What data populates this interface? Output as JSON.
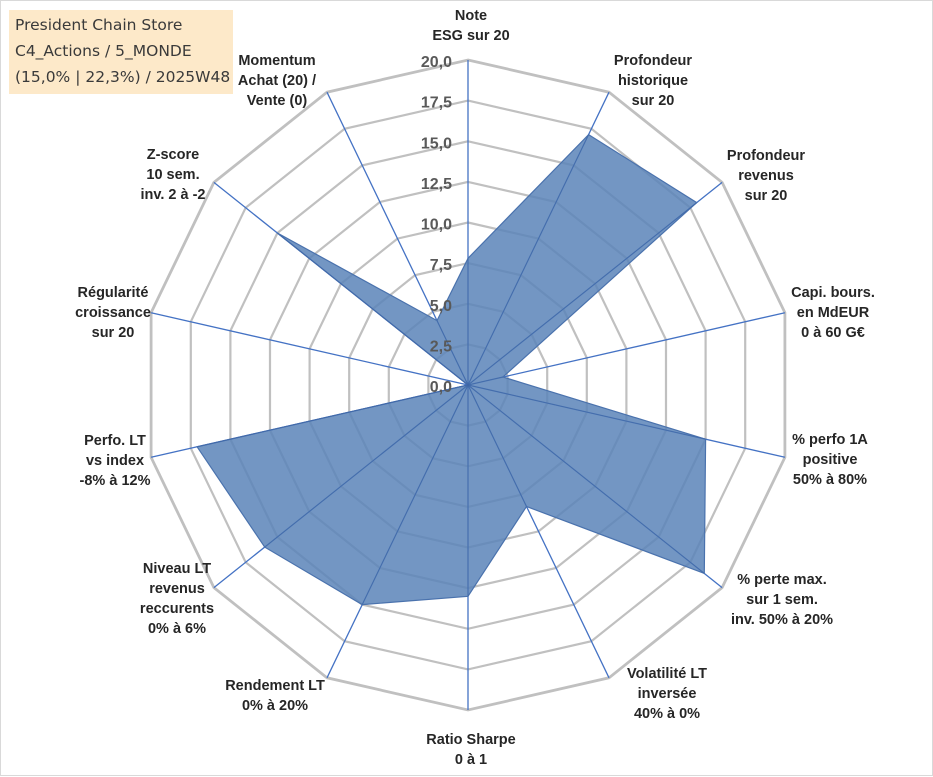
{
  "title_box": {
    "line1": "President Chain Store",
    "line2": "C4_Actions / 5_MONDE",
    "line3": "(15,0% | 22,3%) / 2025W48"
  },
  "colors": {
    "fill": "#5b84b8",
    "stroke": "#4a72ad",
    "spoke": "#4472c4",
    "grid": "#c0c0c0",
    "title_bg": "#fde9c9"
  },
  "chart_data": {
    "type": "radar",
    "rmax": 20,
    "ticks": [
      "0,0",
      "2,5",
      "5,0",
      "7,5",
      "10,0",
      "12,5",
      "15,0",
      "17,5",
      "20,0"
    ],
    "tick_values": [
      0,
      2.5,
      5,
      7.5,
      10,
      12.5,
      15,
      17.5,
      20
    ],
    "gridlines": [
      2.5,
      5,
      7.5,
      10,
      12.5,
      15,
      17.5,
      20
    ],
    "axes": [
      {
        "label": [
          "Note",
          "ESG sur 20"
        ],
        "value": 7.8
      },
      {
        "label": [
          "Profondeur",
          "historique",
          "sur 20"
        ],
        "value": 17.1
      },
      {
        "label": [
          "Profondeur",
          "revenus",
          "sur 20"
        ],
        "value": 18.0
      },
      {
        "label": [
          "Capi. bours.",
          "en MdEUR",
          "0 à 60 G€"
        ],
        "value": 2.2
      },
      {
        "label": [
          "% perfo 1A",
          "positive",
          "50% à 80%"
        ],
        "value": 15.0
      },
      {
        "label": [
          "% perte max.",
          "sur 1 sem.",
          "inv. 50% à 20%"
        ],
        "value": 18.6
      },
      {
        "label": [
          "Volatilité LT",
          "inversée",
          "40% à 0%"
        ],
        "value": 8.3
      },
      {
        "label": [
          "Ratio Sharpe",
          "0 à 1"
        ],
        "value": 13.0
      },
      {
        "label": [
          "Rendement LT",
          "0% à 20%"
        ],
        "value": 15.0
      },
      {
        "label": [
          "Niveau LT",
          "revenus",
          "reccurents",
          "0% à 6%"
        ],
        "value": 16.0
      },
      {
        "label": [
          "Perfo. LT",
          "vs index",
          "-8% à 12%"
        ],
        "value": 17.1
      },
      {
        "label": [
          "Régularité",
          "croissance",
          "sur 20"
        ],
        "value": 0.0
      },
      {
        "label": [
          "Z-score",
          "10 sem.",
          "inv. 2 à -2"
        ],
        "value": 15.0
      },
      {
        "label": [
          "Momentum",
          "Achat (20) /",
          "Vente (0)"
        ],
        "value": 4.4
      }
    ]
  }
}
